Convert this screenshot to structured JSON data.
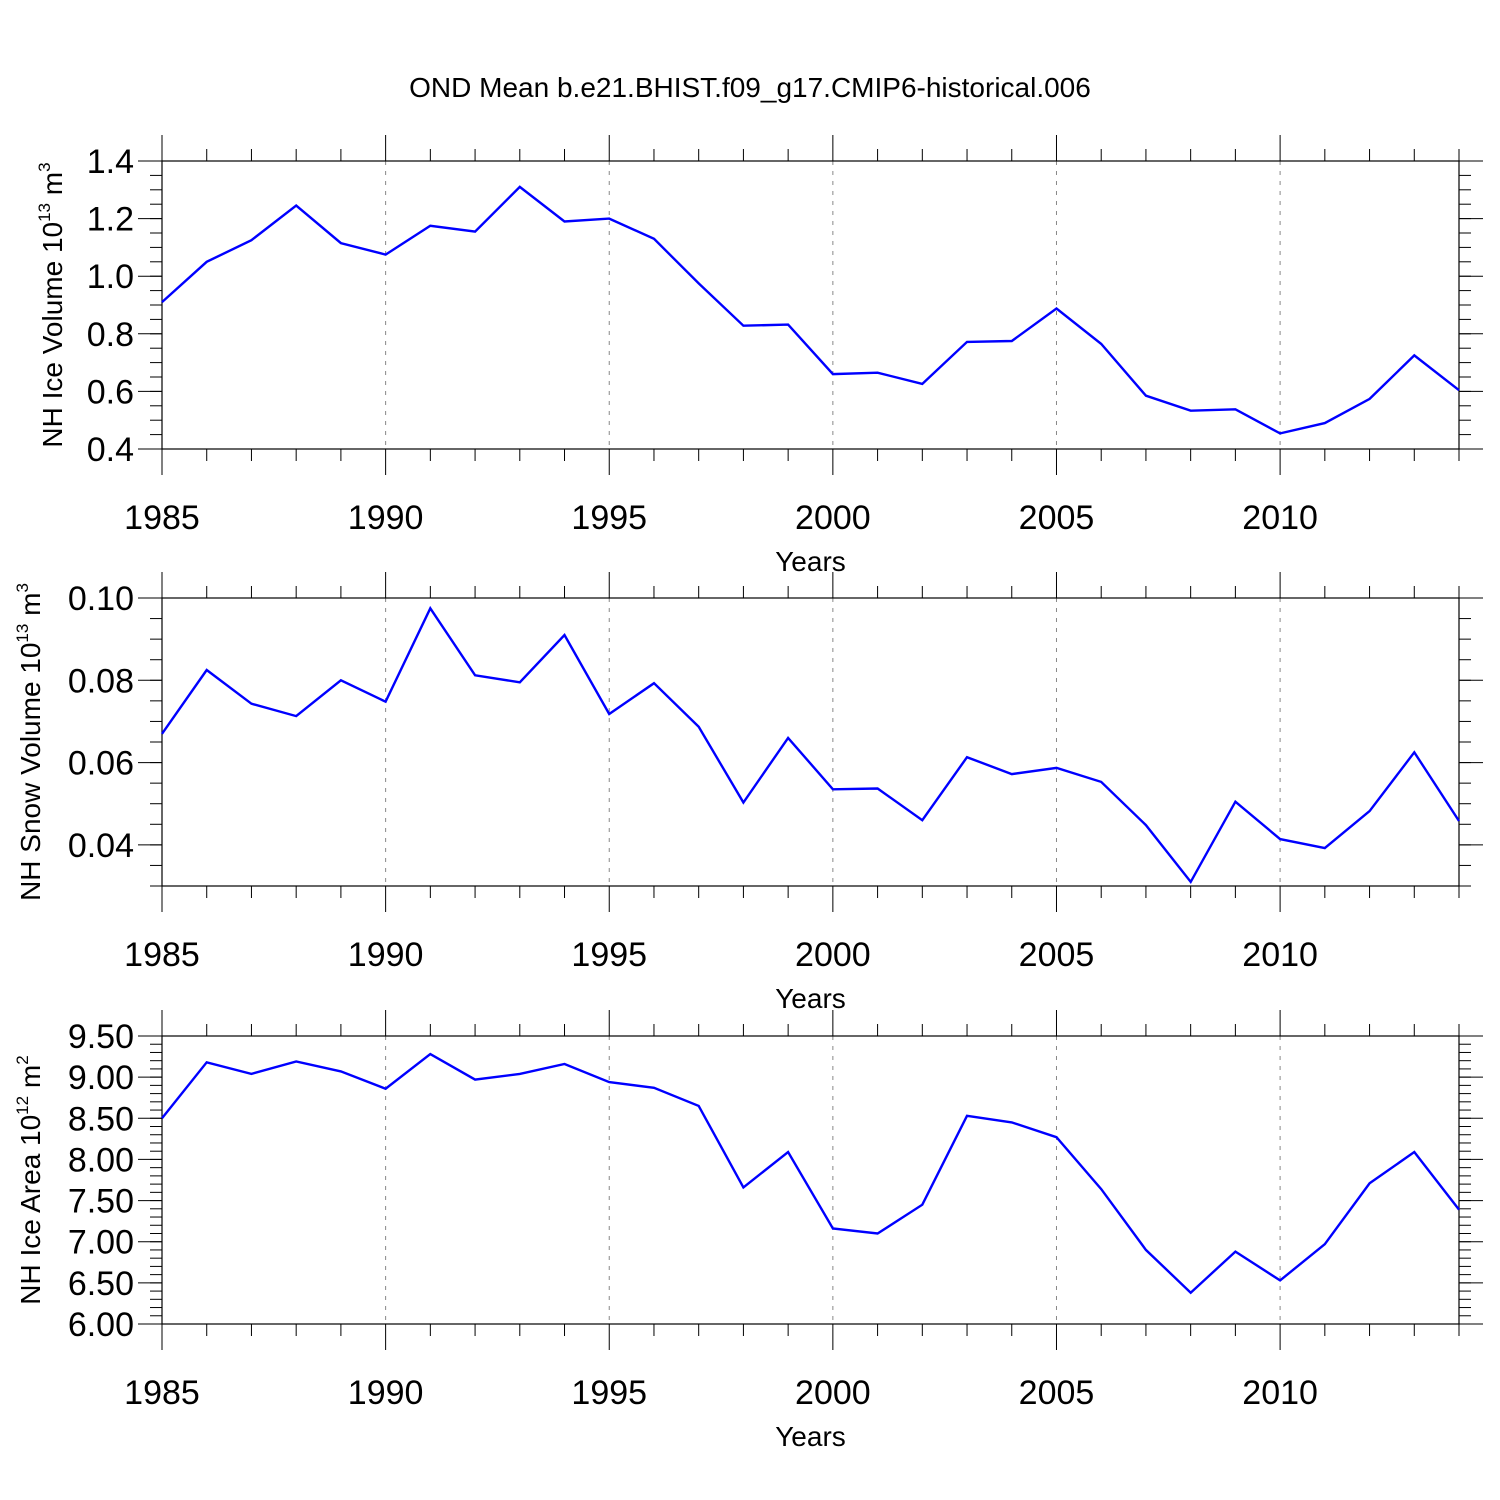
{
  "title": "OND Mean b.e21.BHIST.f09_g17.CMIP6-historical.006",
  "colors": {
    "line": "#0000ff",
    "axis": "#000000",
    "grid": "#888888"
  },
  "chart_data": [
    {
      "type": "line",
      "name": "ice-volume",
      "ylabel": {
        "text": "NH Ice Volume 10",
        "exp": "13",
        "unit": " m",
        "unit_exp": "3"
      },
      "xlabel": "Years",
      "xlim": [
        1985,
        2014
      ],
      "ylim": [
        0.4,
        1.4
      ],
      "yticks": [
        "0.4",
        "0.6",
        "0.8",
        "1.0",
        "1.2",
        "1.4"
      ],
      "ytick_values": [
        0.4,
        0.6,
        0.8,
        1.0,
        1.2,
        1.4
      ],
      "yminor": 0.05,
      "xticks": [
        "1985",
        "1990",
        "1995",
        "2000",
        "2005",
        "2010"
      ],
      "xtick_values": [
        1985,
        1990,
        1995,
        2000,
        2005,
        2010
      ],
      "x": [
        1985,
        1986,
        1987,
        1988,
        1989,
        1990,
        1991,
        1992,
        1993,
        1994,
        1995,
        1996,
        1997,
        1998,
        1999,
        2000,
        2001,
        2002,
        2003,
        2004,
        2005,
        2006,
        2007,
        2008,
        2009,
        2010,
        2011,
        2012,
        2013,
        2014
      ],
      "values": [
        0.91,
        1.05,
        1.125,
        1.245,
        1.115,
        1.075,
        1.175,
        1.155,
        1.31,
        1.19,
        1.2,
        1.13,
        0.975,
        0.828,
        0.832,
        0.66,
        0.665,
        0.626,
        0.772,
        0.775,
        0.888,
        0.765,
        0.585,
        0.533,
        0.538,
        0.454,
        0.49,
        0.574,
        0.725,
        0.604
      ]
    },
    {
      "type": "line",
      "name": "snow-volume",
      "ylabel": {
        "text": "NH Snow Volume 10",
        "exp": "13",
        "unit": " m",
        "unit_exp": "3"
      },
      "xlabel": "Years",
      "xlim": [
        1985,
        2014
      ],
      "ylim": [
        0.03,
        0.1
      ],
      "yticks": [
        "0.04",
        "0.06",
        "0.08",
        "0.10"
      ],
      "ytick_values": [
        0.04,
        0.06,
        0.08,
        0.1
      ],
      "yminor": 0.005,
      "xticks": [
        "1985",
        "1990",
        "1995",
        "2000",
        "2005",
        "2010"
      ],
      "xtick_values": [
        1985,
        1990,
        1995,
        2000,
        2005,
        2010
      ],
      "x": [
        1985,
        1986,
        1987,
        1988,
        1989,
        1990,
        1991,
        1992,
        1993,
        1994,
        1995,
        1996,
        1997,
        1998,
        1999,
        2000,
        2001,
        2002,
        2003,
        2004,
        2005,
        2006,
        2007,
        2008,
        2009,
        2010,
        2011,
        2012,
        2013,
        2014
      ],
      "values": [
        0.067,
        0.0825,
        0.0743,
        0.0713,
        0.08,
        0.0748,
        0.0975,
        0.0812,
        0.0795,
        0.091,
        0.0718,
        0.0793,
        0.0687,
        0.0503,
        0.066,
        0.0535,
        0.0537,
        0.046,
        0.0613,
        0.0572,
        0.0587,
        0.0553,
        0.0448,
        0.031,
        0.0505,
        0.0414,
        0.0392,
        0.0482,
        0.0625,
        0.0458
      ]
    },
    {
      "type": "line",
      "name": "ice-area",
      "ylabel": {
        "text": "NH Ice Area 10",
        "exp": "12",
        "unit": " m",
        "unit_exp": "2"
      },
      "xlabel": "Years",
      "xlim": [
        1985,
        2014
      ],
      "ylim": [
        6.0,
        9.5
      ],
      "yticks": [
        "6.00",
        "6.50",
        "7.00",
        "7.50",
        "8.00",
        "8.50",
        "9.00",
        "9.50"
      ],
      "ytick_values": [
        6.0,
        6.5,
        7.0,
        7.5,
        8.0,
        8.5,
        9.0,
        9.5
      ],
      "yminor": 0.1,
      "xticks": [
        "1985",
        "1990",
        "1995",
        "2000",
        "2005",
        "2010"
      ],
      "xtick_values": [
        1985,
        1990,
        1995,
        2000,
        2005,
        2010
      ],
      "x": [
        1985,
        1986,
        1987,
        1988,
        1989,
        1990,
        1991,
        1992,
        1993,
        1994,
        1995,
        1996,
        1997,
        1998,
        1999,
        2000,
        2001,
        2002,
        2003,
        2004,
        2005,
        2006,
        2007,
        2008,
        2009,
        2010,
        2011,
        2012,
        2013,
        2014
      ],
      "values": [
        8.5,
        9.18,
        9.04,
        9.19,
        9.07,
        8.86,
        9.28,
        8.97,
        9.04,
        9.16,
        8.94,
        8.87,
        8.65,
        7.66,
        8.09,
        7.16,
        7.1,
        7.45,
        8.53,
        8.45,
        8.27,
        7.64,
        6.9,
        6.38,
        6.88,
        6.53,
        6.97,
        7.71,
        8.09,
        7.39
      ]
    }
  ]
}
